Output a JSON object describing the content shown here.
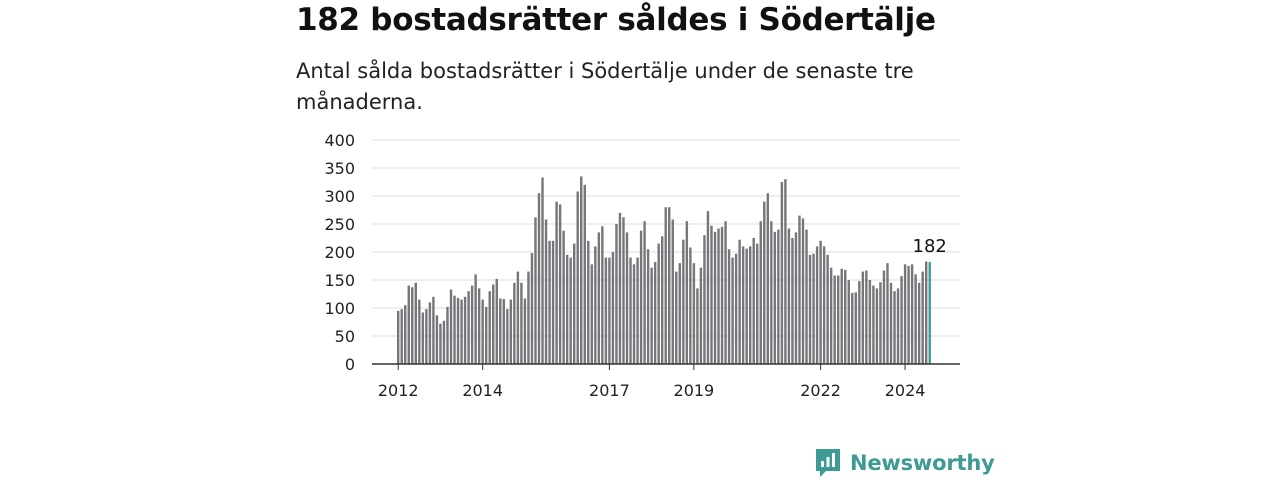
{
  "title": "182 bostadsrätter såldes i Södertälje",
  "subtitle": "Antal sålda bostadsrätter i Södertälje under de senaste tre månaderna.",
  "brand": {
    "name": "Newsworthy",
    "color": "#3f9a94"
  },
  "colors": {
    "bar": "#76757a",
    "highlight": "#3f9a94",
    "grid": "#dddddd",
    "axis": "#333333"
  },
  "chart_data": {
    "type": "bar",
    "title": "",
    "xlabel": "",
    "ylabel": "",
    "ylim": [
      0,
      400
    ],
    "yticks": [
      0,
      50,
      100,
      150,
      200,
      250,
      300,
      350,
      400
    ],
    "grid": true,
    "legend": "none",
    "start": "2012-01",
    "xtick_labels": [
      {
        "label": "2012",
        "index": 0
      },
      {
        "label": "2014",
        "index": 24
      },
      {
        "label": "2017",
        "index": 60
      },
      {
        "label": "2019",
        "index": 84
      },
      {
        "label": "2022",
        "index": 120
      },
      {
        "label": "2024",
        "index": 144
      }
    ],
    "values": [
      95,
      98,
      105,
      140,
      137,
      145,
      115,
      92,
      98,
      110,
      120,
      87,
      72,
      77,
      102,
      133,
      122,
      118,
      115,
      120,
      130,
      140,
      160,
      135,
      115,
      102,
      130,
      142,
      152,
      117,
      116,
      98,
      115,
      145,
      165,
      145,
      117,
      165,
      198,
      262,
      305,
      333,
      258,
      220,
      220,
      290,
      285,
      238,
      195,
      190,
      215,
      308,
      335,
      320,
      220,
      178,
      210,
      235,
      246,
      190,
      190,
      200,
      250,
      270,
      262,
      235,
      190,
      178,
      190,
      238,
      255,
      205,
      172,
      182,
      215,
      228,
      280,
      280,
      258,
      165,
      180,
      222,
      255,
      208,
      180,
      135,
      172,
      230,
      273,
      247,
      236,
      242,
      245,
      255,
      205,
      190,
      197,
      222,
      210,
      206,
      210,
      225,
      215,
      255,
      290,
      305,
      255,
      236,
      240,
      325,
      330,
      242,
      225,
      235,
      265,
      260,
      240,
      195,
      197,
      210,
      220,
      210,
      195,
      172,
      158,
      158,
      170,
      168,
      150,
      127,
      128,
      148,
      165,
      167,
      150,
      140,
      135,
      146,
      167,
      180,
      145,
      130,
      135,
      157,
      178,
      175,
      178,
      160,
      145,
      165,
      183,
      182
    ],
    "highlight_index": 151,
    "annotations": [
      {
        "text": "182",
        "index": 151
      }
    ]
  }
}
